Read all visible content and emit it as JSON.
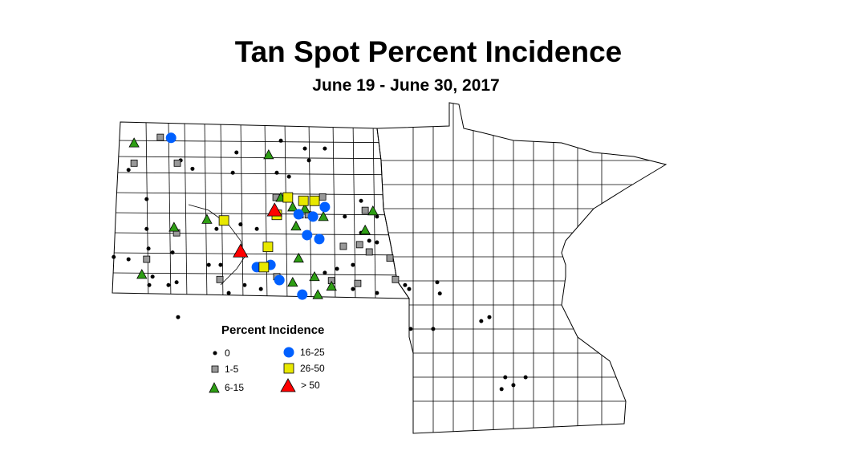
{
  "title": "Tan Spot Percent Incidence",
  "subtitle": "June 19 - June 30, 2017",
  "legend": {
    "title": "Percent Incidence",
    "items": [
      {
        "label": "0",
        "shape": "dot",
        "color": "#000000"
      },
      {
        "label": "1-5",
        "shape": "square",
        "color": "#999999"
      },
      {
        "label": "6-15",
        "shape": "triangle",
        "color": "#2e9e14"
      },
      {
        "label": "16-25",
        "shape": "circle",
        "color": "#0060ff"
      },
      {
        "label": "26-50",
        "shape": "square",
        "color": "#e8e800"
      },
      {
        "label": "> 50",
        "shape": "triangle",
        "color": "#ff0000"
      }
    ]
  },
  "points": [
    [
      -102.57,
      48.76,
      "16-25"
    ],
    [
      -98.41,
      47.53,
      "16-25"
    ],
    [
      -98.89,
      47.03,
      "16-25"
    ],
    [
      -98.56,
      46.96,
      "16-25"
    ],
    [
      -100.25,
      46.46,
      "16-25"
    ],
    [
      -99.88,
      46.5,
      "16-25"
    ],
    [
      -99.64,
      46.23,
      "16-25"
    ],
    [
      -99.02,
      45.97,
      "16-25"
    ],
    [
      -98.73,
      47.36,
      "16-25"
    ],
    [
      -99.12,
      47.4,
      "16-25"
    ],
    [
      -101.14,
      47.29,
      "26-50"
    ],
    [
      -99.95,
      46.82,
      "26-50"
    ],
    [
      -100.06,
      46.46,
      "26-50"
    ],
    [
      -99.41,
      47.7,
      "26-50"
    ],
    [
      -98.99,
      47.64,
      "26-50"
    ],
    [
      -98.69,
      47.64,
      "26-50"
    ],
    [
      -99.71,
      47.39,
      "26-50"
    ],
    [
      -100.69,
      46.74,
      "> 50"
    ],
    [
      -99.77,
      47.47,
      "> 50"
    ],
    [
      -103.57,
      48.67,
      "6-15"
    ],
    [
      -99.93,
      48.46,
      "6-15"
    ],
    [
      -101.6,
      47.31,
      "6-15"
    ],
    [
      -103.36,
      46.33,
      "6-15"
    ],
    [
      -102.49,
      47.17,
      "6-15"
    ],
    [
      -99.28,
      47.53,
      "6-15"
    ],
    [
      -98.95,
      47.5,
      "6-15"
    ],
    [
      -98.45,
      47.36,
      "6-15"
    ],
    [
      -99.19,
      47.19,
      "6-15"
    ],
    [
      -97.32,
      47.12,
      "6-15"
    ],
    [
      -97.11,
      47.46,
      "6-15"
    ],
    [
      -99.12,
      46.62,
      "6-15"
    ],
    [
      -99.28,
      46.19,
      "6-15"
    ],
    [
      -98.69,
      46.29,
      "6-15"
    ],
    [
      -98.6,
      45.97,
      "6-15"
    ],
    [
      -98.23,
      46.12,
      "6-15"
    ],
    [
      -99.6,
      47.7,
      "6-15"
    ],
    [
      -102.86,
      48.77,
      "1-5"
    ],
    [
      -103.57,
      48.31,
      "1-5"
    ],
    [
      -102.4,
      48.31,
      "1-5"
    ],
    [
      -99.73,
      47.7,
      "1-5"
    ],
    [
      -99.08,
      47.39,
      "1-5"
    ],
    [
      -102.42,
      47.07,
      "1-5"
    ],
    [
      -103.23,
      46.6,
      "1-5"
    ],
    [
      -101.25,
      46.24,
      "1-5"
    ],
    [
      -99.71,
      46.29,
      "1-5"
    ],
    [
      -98.23,
      46.22,
      "1-5"
    ],
    [
      -97.52,
      46.17,
      "1-5"
    ],
    [
      -97.91,
      46.83,
      "1-5"
    ],
    [
      -97.47,
      46.86,
      "1-5"
    ],
    [
      -97.21,
      46.73,
      "1-5"
    ],
    [
      -97.32,
      47.47,
      "1-5"
    ],
    [
      -96.65,
      46.62,
      "1-5"
    ],
    [
      -96.5,
      46.24,
      "1-5"
    ],
    [
      -98.47,
      47.71,
      "1-5"
    ],
    [
      -98.86,
      47.39,
      "1-5"
    ],
    [
      -103.72,
      48.19,
      "0"
    ],
    [
      -103.23,
      47.67,
      "0"
    ],
    [
      -103.23,
      47.14,
      "0"
    ],
    [
      -104.12,
      46.64,
      "0"
    ],
    [
      -103.72,
      46.6,
      "0"
    ],
    [
      -103.18,
      46.79,
      "0"
    ],
    [
      -102.53,
      46.72,
      "0"
    ],
    [
      -102.38,
      45.57,
      "0"
    ],
    [
      -102.64,
      46.14,
      "0"
    ],
    [
      -102.42,
      46.19,
      "0"
    ],
    [
      -103.16,
      46.14,
      "0"
    ],
    [
      -101.55,
      46.5,
      "0"
    ],
    [
      -101.01,
      46.0,
      "0"
    ],
    [
      -101.23,
      46.5,
      "0"
    ],
    [
      -100.58,
      46.14,
      "0"
    ],
    [
      -100.14,
      46.07,
      "0"
    ],
    [
      -100.9,
      48.14,
      "0"
    ],
    [
      -100.8,
      48.5,
      "0"
    ],
    [
      -99.71,
      48.14,
      "0"
    ],
    [
      -99.38,
      48.07,
      "0"
    ],
    [
      -98.95,
      48.57,
      "0"
    ],
    [
      -98.41,
      48.57,
      "0"
    ],
    [
      -98.84,
      48.36,
      "0"
    ],
    [
      -99.6,
      48.71,
      "0"
    ],
    [
      -97.65,
      46.5,
      "0"
    ],
    [
      -97.0,
      46.0,
      "0"
    ],
    [
      -96.24,
      46.14,
      "0"
    ],
    [
      -96.13,
      46.07,
      "0"
    ],
    [
      -95.37,
      46.19,
      "0"
    ],
    [
      -95.3,
      45.99,
      "0"
    ],
    [
      -96.09,
      45.36,
      "0"
    ],
    [
      -95.48,
      45.36,
      "0"
    ],
    [
      -94.18,
      45.5,
      "0"
    ],
    [
      -93.96,
      45.57,
      "0"
    ],
    [
      -93.53,
      44.5,
      "0"
    ],
    [
      -93.31,
      44.36,
      "0"
    ],
    [
      -92.98,
      44.5,
      "0"
    ],
    [
      -93.63,
      44.29,
      "0"
    ],
    [
      -97.87,
      47.36,
      "0"
    ],
    [
      -97.43,
      47.64,
      "0"
    ],
    [
      -97.0,
      47.36,
      "0"
    ],
    [
      -98.08,
      46.43,
      "0"
    ],
    [
      -98.41,
      46.36,
      "0"
    ],
    [
      -97.65,
      46.07,
      "0"
    ],
    [
      -103.07,
      46.29,
      "0"
    ],
    [
      -102.31,
      48.36,
      "0"
    ],
    [
      -101.99,
      48.21,
      "0"
    ],
    [
      -101.34,
      47.14,
      "0"
    ],
    [
      -97.43,
      47.07,
      "0"
    ],
    [
      -97.21,
      46.93,
      "0"
    ],
    [
      -97.0,
      46.9,
      "0"
    ],
    [
      -96.67,
      46.64,
      "0"
    ],
    [
      -100.25,
      47.14,
      "0"
    ],
    [
      -100.69,
      47.22,
      "0"
    ]
  ]
}
